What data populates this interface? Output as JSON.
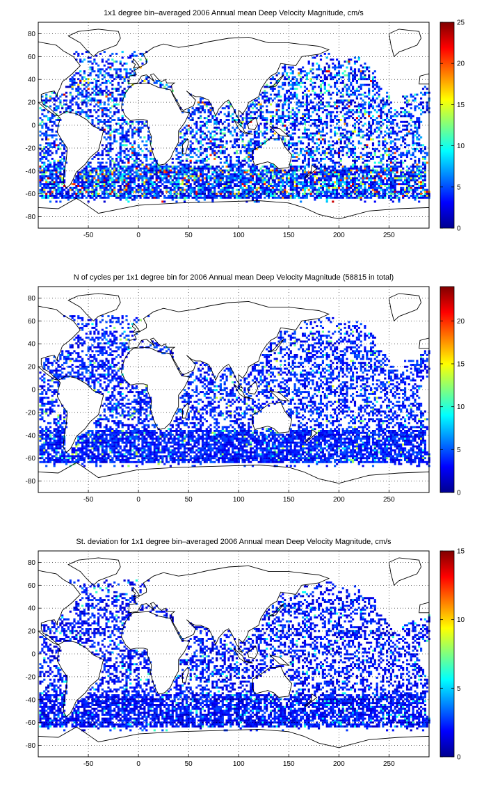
{
  "panels": [
    {
      "title": "1x1 degree bin–averaged 2006 Annual mean Deep Velocity Magnitude, cm/s",
      "colorbar": {
        "min": 0,
        "max": 25,
        "ticks": [
          0,
          5,
          10,
          15,
          20,
          25
        ]
      }
    },
    {
      "title": "N of cycles per 1x1 degree bin for 2006 Annual mean Deep Velocity Magnitude (58815 in total)",
      "colorbar": {
        "min": 0,
        "max": 24,
        "ticks": [
          0,
          5,
          10,
          15,
          20
        ]
      }
    },
    {
      "title": "St. deviation for 1x1 degree bin–averaged 2006 Annual mean Deep Velocity Magnitude, cm/s",
      "colorbar": {
        "min": 0,
        "max": 15,
        "ticks": [
          0,
          5,
          10,
          15
        ]
      }
    }
  ],
  "map_axes": {
    "x_ticks": [
      -50,
      0,
      50,
      100,
      150,
      200,
      250
    ],
    "y_ticks": [
      -80,
      -60,
      -40,
      -20,
      0,
      20,
      40,
      60,
      80
    ],
    "xlim": [
      -100,
      290
    ],
    "ylim": [
      -90,
      90
    ],
    "grid": "dotted",
    "colormap": "jet"
  }
}
